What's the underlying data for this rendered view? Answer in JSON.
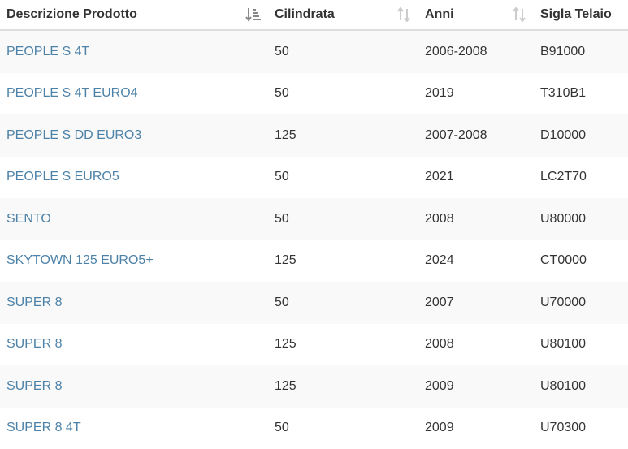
{
  "table": {
    "headers": [
      "Descrizione Prodotto",
      "Cilindrata",
      "Anni",
      "Sigla Telaio"
    ],
    "header_icons": [
      "sort-amount-desc-icon",
      "sort-icon",
      "sort-icon",
      ""
    ],
    "rows": [
      {
        "prodotto": "PEOPLE S 4T",
        "cilindrata": "50",
        "anni": "2006-2008",
        "sigla": "B91000"
      },
      {
        "prodotto": "PEOPLE S 4T EURO4",
        "cilindrata": "50",
        "anni": "2019",
        "sigla": "T310B1"
      },
      {
        "prodotto": "PEOPLE S DD EURO3",
        "cilindrata": "125",
        "anni": "2007-2008",
        "sigla": "D10000"
      },
      {
        "prodotto": "PEOPLE S EURO5",
        "cilindrata": "50",
        "anni": "2021",
        "sigla": "LC2T70"
      },
      {
        "prodotto": "SENTO",
        "cilindrata": "50",
        "anni": "2008",
        "sigla": "U80000"
      },
      {
        "prodotto": "SKYTOWN 125 EURO5+",
        "cilindrata": "125",
        "anni": "2024",
        "sigla": "CT0000"
      },
      {
        "prodotto": "SUPER 8",
        "cilindrata": "50",
        "anni": "2007",
        "sigla": "U70000"
      },
      {
        "prodotto": "SUPER 8",
        "cilindrata": "125",
        "anni": "2008",
        "sigla": "U80100"
      },
      {
        "prodotto": "SUPER 8",
        "cilindrata": "125",
        "anni": "2009",
        "sigla": "U80100"
      },
      {
        "prodotto": "SUPER 8 4T",
        "cilindrata": "50",
        "anni": "2009",
        "sigla": "U70300"
      }
    ]
  },
  "colors": {
    "link": "#4d82a8",
    "text": "#333333",
    "stripe": "#f9f9f9",
    "icon_active": "#888888",
    "icon_inactive": "#cccccc"
  }
}
